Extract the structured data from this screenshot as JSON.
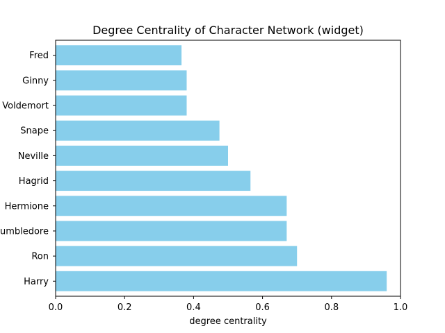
{
  "chart_data": {
    "type": "bar",
    "orientation": "horizontal",
    "title": "Degree Centrality of Character Network (widget)",
    "xlabel": "degree centrality",
    "ylabel": "",
    "categories": [
      "Harry",
      "Ron",
      "Dumbledore",
      "Hermione",
      "Hagrid",
      "Neville",
      "Snape",
      "Voldemort",
      "Ginny",
      "Fred"
    ],
    "values": [
      0.96,
      0.7,
      0.67,
      0.67,
      0.565,
      0.5,
      0.475,
      0.38,
      0.38,
      0.365
    ],
    "xlim": [
      0,
      1.0
    ],
    "xticks": [
      "0.0",
      "0.2",
      "0.4",
      "0.6",
      "0.8",
      "1.0"
    ],
    "xtick_values": [
      0.0,
      0.2,
      0.4,
      0.6,
      0.8,
      1.0
    ],
    "bar_color": "#87ceeb",
    "grid": false,
    "legend": "none"
  }
}
